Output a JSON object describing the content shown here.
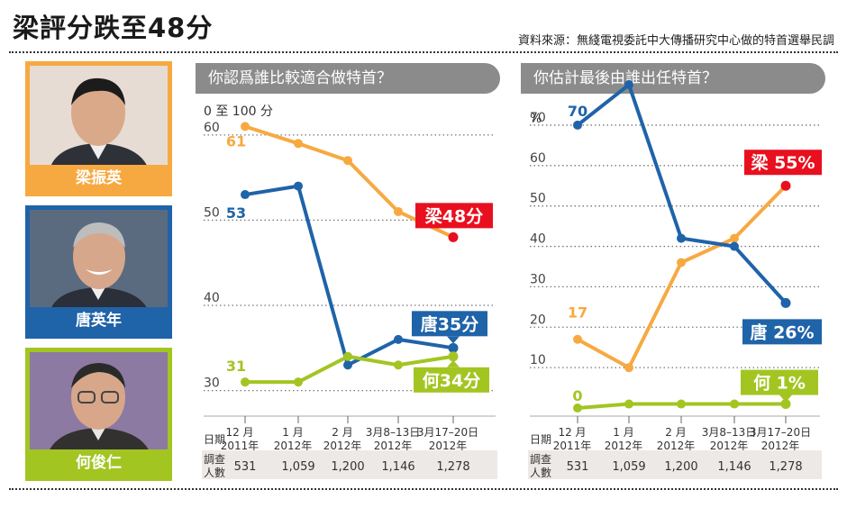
{
  "page": {
    "title": "梁評分跌至48分",
    "source": "資料來源：無綫電視委託中大傳播研究中心做的特首選舉民調"
  },
  "candidates": [
    {
      "name": "梁振英",
      "color": "#f7a941"
    },
    {
      "name": "唐英年",
      "color": "#1f63a8"
    },
    {
      "name": "何俊仁",
      "color": "#a3c522"
    }
  ],
  "chart_data": [
    {
      "type": "line",
      "title": "你認爲誰比較適合做特首？",
      "ylabel": "0 至 100 分",
      "ylim": [
        27,
        64
      ],
      "yticks": [
        30,
        40,
        50,
        60
      ],
      "categories": [
        [
          "12 月",
          "2011年"
        ],
        [
          "1 月",
          "2012年"
        ],
        [
          "2 月",
          "2012年"
        ],
        [
          "3月8–13日",
          "2012年"
        ],
        [
          "3月17–20日",
          "2012年"
        ]
      ],
      "row_label_date": "日期",
      "row_label_sample": [
        "調查",
        "人數"
      ],
      "sample_sizes": [
        "531",
        "1,059",
        "1,200",
        "1,146",
        "1,278"
      ],
      "series": [
        {
          "name": "梁振英",
          "color": "#f7a941",
          "endcolor": "#e8101f",
          "values": [
            61,
            59,
            57,
            51,
            48
          ],
          "start_label": "61",
          "end_label": "梁48分"
        },
        {
          "name": "唐英年",
          "color": "#1f63a8",
          "endcolor": "#1f63a8",
          "values": [
            53,
            54,
            33,
            36,
            35
          ],
          "start_label": "53",
          "end_label": "唐35分"
        },
        {
          "name": "何俊仁",
          "color": "#a3c522",
          "endcolor": "#a3c522",
          "values": [
            31,
            31,
            34,
            33,
            34
          ],
          "start_label": "31",
          "end_label": "何34分"
        }
      ]
    },
    {
      "type": "line",
      "title": "你估計最後由誰出任特首？",
      "ylabel": "%",
      "ylim": [
        -2,
        76
      ],
      "yticks": [
        10,
        20,
        30,
        40,
        50,
        60,
        70
      ],
      "categories": [
        [
          "12 月",
          "2011年"
        ],
        [
          "1 月",
          "2012年"
        ],
        [
          "2 月",
          "2012年"
        ],
        [
          "3月8–13日",
          "2012年"
        ],
        [
          "3月17–20日",
          "2012年"
        ]
      ],
      "row_label_date": "日期",
      "row_label_sample": [
        "調查",
        "人數"
      ],
      "sample_sizes": [
        "531",
        "1,059",
        "1,200",
        "1,146",
        "1,278"
      ],
      "series": [
        {
          "name": "梁振英",
          "color": "#f7a941",
          "endcolor": "#e8101f",
          "values": [
            17,
            10,
            36,
            42,
            55
          ],
          "start_label": "17",
          "end_label": "梁 55%"
        },
        {
          "name": "唐英年",
          "color": "#1f63a8",
          "endcolor": "#1f63a8",
          "values": [
            70,
            80,
            42,
            40,
            26
          ],
          "start_label": "70",
          "end_label": "唐 26%"
        },
        {
          "name": "何俊仁",
          "color": "#a3c522",
          "endcolor": "#a3c522",
          "values": [
            0,
            1,
            1,
            1,
            1
          ],
          "start_label": "0",
          "end_label": "何 1%"
        }
      ]
    }
  ]
}
